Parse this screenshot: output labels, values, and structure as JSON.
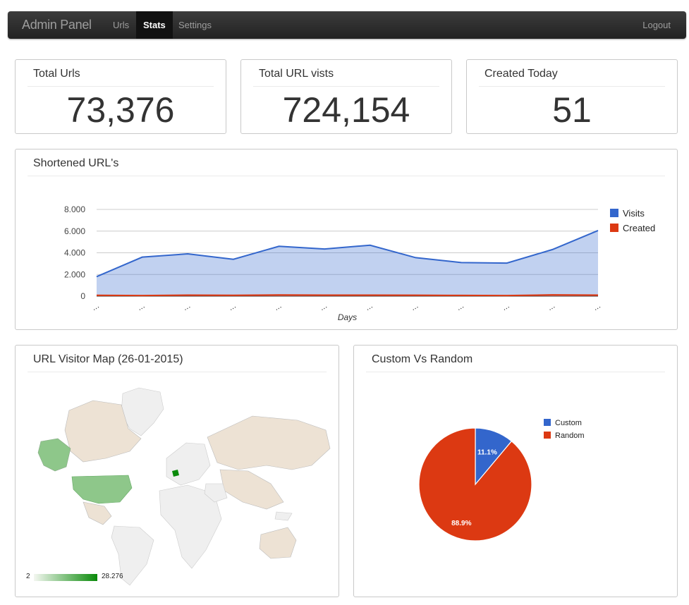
{
  "nav": {
    "brand": "Admin Panel",
    "items": [
      {
        "label": "Urls",
        "active": false
      },
      {
        "label": "Stats",
        "active": true
      },
      {
        "label": "Settings",
        "active": false
      }
    ],
    "logout": "Logout"
  },
  "stats": [
    {
      "title": "Total Urls",
      "value": "73,376"
    },
    {
      "title": "Total URL vists",
      "value": "724,154"
    },
    {
      "title": "Created Today",
      "value": "51"
    }
  ],
  "line_panel": {
    "title": "Shortened URL's"
  },
  "map_panel": {
    "title": "URL Visitor Map (26-01-2015)",
    "scale_min": "2",
    "scale_max": "28.276",
    "colors": {
      "land": "#efefef",
      "visited": "#ede2d4",
      "medium": "#8ec78a",
      "high": "#0a8a0a"
    }
  },
  "pie_panel": {
    "title": "Custom Vs Random"
  },
  "chart_data": [
    {
      "type": "area",
      "xlabel": "Days",
      "ylabel": "",
      "ylim": [
        0,
        8000
      ],
      "yticks": [
        "0",
        "2.000",
        "4.000",
        "6.000",
        "8.000"
      ],
      "categories": [
        "...",
        "...",
        "...",
        "...",
        "...",
        "...",
        "...",
        "...",
        "...",
        "...",
        "...",
        "..."
      ],
      "series": [
        {
          "name": "Visits",
          "color": "#3366cc",
          "values": [
            1800,
            3600,
            3900,
            3400,
            4600,
            4350,
            4700,
            3550,
            3100,
            3050,
            4300,
            6050
          ]
        },
        {
          "name": "Created",
          "color": "#dc3912",
          "values": [
            80,
            60,
            100,
            80,
            110,
            100,
            100,
            90,
            70,
            60,
            120,
            100
          ]
        }
      ],
      "legend": "right"
    },
    {
      "type": "pie",
      "legend": "top-right",
      "slices": [
        {
          "name": "Custom",
          "value": 11.1,
          "label": "11.1%",
          "color": "#3366cc"
        },
        {
          "name": "Random",
          "value": 88.9,
          "label": "88.9%",
          "color": "#dc3912"
        }
      ]
    }
  ]
}
